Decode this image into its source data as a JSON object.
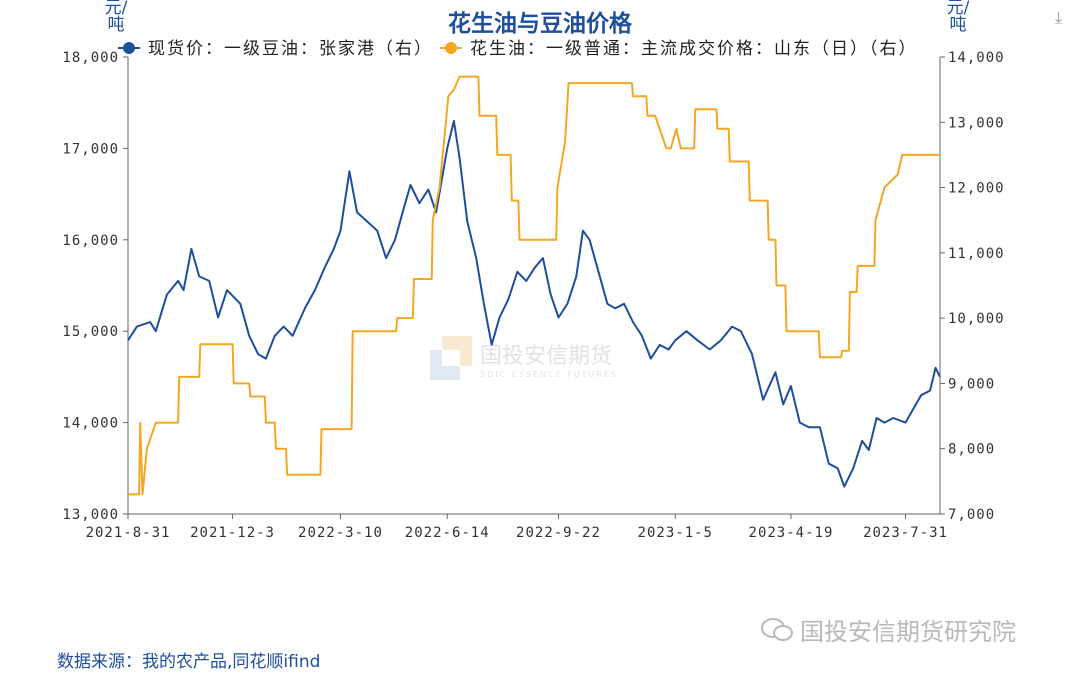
{
  "title": "花生油与豆油价格",
  "units": {
    "left": "元/吨",
    "right": "元/吨"
  },
  "source": "数据来源：我的农产品,同花顺ifind",
  "watermark": {
    "center_cn": "国投安信期货",
    "center_en": "SDIC ESSENCE FUTURES",
    "footer": "国投安信期货研究院"
  },
  "icons": {
    "download": "download-icon",
    "wechat": "wechat-icon",
    "logo": "sdic-logo-icon"
  },
  "chart_data": {
    "type": "line",
    "title": "花生油与豆油价格",
    "x_ticks": [
      "2021-8-31",
      "2021-12-3",
      "2022-3-10",
      "2022-6-14",
      "2022-9-22",
      "2023-1-5",
      "2023-4-19",
      "2023-7-31"
    ],
    "xlim": [
      "2021-8-31",
      "2023-8-31"
    ],
    "y_left": {
      "label": "元/吨",
      "ylim": [
        13000,
        18000
      ],
      "ticks": [
        13000,
        14000,
        15000,
        16000,
        17000,
        18000
      ]
    },
    "y_right": {
      "label": "元/吨",
      "ylim": [
        7000,
        14000
      ],
      "ticks": [
        7000,
        8000,
        9000,
        10000,
        11000,
        12000,
        13000,
        14000
      ]
    },
    "legend_position": "top",
    "grid": false,
    "series": [
      {
        "name": "现货价：一级豆油：张家港（右）",
        "axis": "left",
        "color": "#1f4e9c",
        "points": [
          [
            "2021-08-31",
            14900
          ],
          [
            "2021-09-08",
            15050
          ],
          [
            "2021-09-20",
            15100
          ],
          [
            "2021-09-25",
            15000
          ],
          [
            "2021-10-05",
            15400
          ],
          [
            "2021-10-15",
            15550
          ],
          [
            "2021-10-20",
            15450
          ],
          [
            "2021-10-27",
            15900
          ],
          [
            "2021-11-03",
            15600
          ],
          [
            "2021-11-12",
            15550
          ],
          [
            "2021-11-20",
            15150
          ],
          [
            "2021-11-28",
            15450
          ],
          [
            "2021-12-10",
            15300
          ],
          [
            "2021-12-18",
            14950
          ],
          [
            "2021-12-26",
            14750
          ],
          [
            "2022-01-02",
            14700
          ],
          [
            "2022-01-10",
            14950
          ],
          [
            "2022-01-18",
            15050
          ],
          [
            "2022-01-26",
            14950
          ],
          [
            "2022-02-06",
            15250
          ],
          [
            "2022-02-15",
            15450
          ],
          [
            "2022-02-24",
            15700
          ],
          [
            "2022-03-04",
            15900
          ],
          [
            "2022-03-10",
            16100
          ],
          [
            "2022-03-18",
            16750
          ],
          [
            "2022-03-25",
            16300
          ],
          [
            "2022-04-03",
            16200
          ],
          [
            "2022-04-12",
            16100
          ],
          [
            "2022-04-20",
            15800
          ],
          [
            "2022-04-28",
            16000
          ],
          [
            "2022-05-06",
            16350
          ],
          [
            "2022-05-12",
            16600
          ],
          [
            "2022-05-20",
            16400
          ],
          [
            "2022-05-28",
            16550
          ],
          [
            "2022-06-04",
            16300
          ],
          [
            "2022-06-14",
            17000
          ],
          [
            "2022-06-20",
            17300
          ],
          [
            "2022-06-25",
            16900
          ],
          [
            "2022-07-02",
            16200
          ],
          [
            "2022-07-10",
            15800
          ],
          [
            "2022-07-17",
            15300
          ],
          [
            "2022-07-24",
            14850
          ],
          [
            "2022-07-31",
            15150
          ],
          [
            "2022-08-08",
            15350
          ],
          [
            "2022-08-16",
            15650
          ],
          [
            "2022-08-24",
            15550
          ],
          [
            "2022-09-01",
            15700
          ],
          [
            "2022-09-08",
            15800
          ],
          [
            "2022-09-15",
            15400
          ],
          [
            "2022-09-22",
            15150
          ],
          [
            "2022-09-30",
            15300
          ],
          [
            "2022-10-08",
            15600
          ],
          [
            "2022-10-14",
            16100
          ],
          [
            "2022-10-20",
            16000
          ],
          [
            "2022-10-28",
            15650
          ],
          [
            "2022-11-05",
            15300
          ],
          [
            "2022-11-12",
            15250
          ],
          [
            "2022-11-20",
            15300
          ],
          [
            "2022-11-28",
            15100
          ],
          [
            "2022-12-06",
            14950
          ],
          [
            "2022-12-14",
            14700
          ],
          [
            "2022-12-22",
            14850
          ],
          [
            "2022-12-30",
            14800
          ],
          [
            "2023-01-05",
            14900
          ],
          [
            "2023-01-15",
            15000
          ],
          [
            "2023-01-25",
            14900
          ],
          [
            "2023-02-05",
            14800
          ],
          [
            "2023-02-15",
            14900
          ],
          [
            "2023-02-25",
            15050
          ],
          [
            "2023-03-05",
            15000
          ],
          [
            "2023-03-15",
            14750
          ],
          [
            "2023-03-25",
            14250
          ],
          [
            "2023-04-05",
            14550
          ],
          [
            "2023-04-12",
            14200
          ],
          [
            "2023-04-19",
            14400
          ],
          [
            "2023-04-27",
            14000
          ],
          [
            "2023-05-05",
            13950
          ],
          [
            "2023-05-15",
            13950
          ],
          [
            "2023-05-23",
            13550
          ],
          [
            "2023-05-31",
            13500
          ],
          [
            "2023-06-06",
            13300
          ],
          [
            "2023-06-14",
            13500
          ],
          [
            "2023-06-22",
            13800
          ],
          [
            "2023-06-28",
            13700
          ],
          [
            "2023-07-05",
            14050
          ],
          [
            "2023-07-12",
            14000
          ],
          [
            "2023-07-20",
            14050
          ],
          [
            "2023-07-31",
            14000
          ],
          [
            "2023-08-07",
            14150
          ],
          [
            "2023-08-14",
            14300
          ],
          [
            "2023-08-22",
            14350
          ],
          [
            "2023-08-27",
            14600
          ],
          [
            "2023-08-31",
            14500
          ]
        ]
      },
      {
        "name": "花生油：一级普通：主流成交价格：山东（日）（右）",
        "axis": "right",
        "color": "#f5a623",
        "points": [
          [
            "2021-08-31",
            7300
          ],
          [
            "2021-09-10",
            7300
          ],
          [
            "2021-09-11",
            8400
          ],
          [
            "2021-09-13",
            7300
          ],
          [
            "2021-09-17",
            8000
          ],
          [
            "2021-09-25",
            8400
          ],
          [
            "2021-10-05",
            8400
          ],
          [
            "2021-10-15",
            8400
          ],
          [
            "2021-10-16",
            9100
          ],
          [
            "2021-11-03",
            9100
          ],
          [
            "2021-11-04",
            9600
          ],
          [
            "2021-11-29",
            9600
          ],
          [
            "2021-11-30",
            9600
          ],
          [
            "2021-12-03",
            9600
          ],
          [
            "2021-12-04",
            9000
          ],
          [
            "2021-12-18",
            9000
          ],
          [
            "2021-12-19",
            8800
          ],
          [
            "2022-01-01",
            8800
          ],
          [
            "2022-01-02",
            8400
          ],
          [
            "2022-01-10",
            8400
          ],
          [
            "2022-01-11",
            8000
          ],
          [
            "2022-01-20",
            8000
          ],
          [
            "2022-01-21",
            7600
          ],
          [
            "2022-02-20",
            7600
          ],
          [
            "2022-02-21",
            8300
          ],
          [
            "2022-03-20",
            8300
          ],
          [
            "2022-03-21",
            9800
          ],
          [
            "2022-04-29",
            9800
          ],
          [
            "2022-04-30",
            10000
          ],
          [
            "2022-05-14",
            10000
          ],
          [
            "2022-05-15",
            10600
          ],
          [
            "2022-05-31",
            10600
          ],
          [
            "2022-06-01",
            11500
          ],
          [
            "2022-06-07",
            12000
          ],
          [
            "2022-06-15",
            13400
          ],
          [
            "2022-06-20",
            13500
          ],
          [
            "2022-06-25",
            13700
          ],
          [
            "2022-07-12",
            13700
          ],
          [
            "2022-07-13",
            13100
          ],
          [
            "2022-07-28",
            13100
          ],
          [
            "2022-07-29",
            12500
          ],
          [
            "2022-08-10",
            12500
          ],
          [
            "2022-08-11",
            11800
          ],
          [
            "2022-08-17",
            11800
          ],
          [
            "2022-08-18",
            11200
          ],
          [
            "2022-09-20",
            11200
          ],
          [
            "2022-09-21",
            12000
          ],
          [
            "2022-09-28",
            12700
          ],
          [
            "2022-10-01",
            13600
          ],
          [
            "2022-11-27",
            13600
          ],
          [
            "2022-11-28",
            13400
          ],
          [
            "2022-12-10",
            13400
          ],
          [
            "2022-12-11",
            13100
          ],
          [
            "2022-12-18",
            13100
          ],
          [
            "2022-12-28",
            12600
          ],
          [
            "2023-01-01",
            12600
          ],
          [
            "2023-01-06",
            12900
          ],
          [
            "2023-01-10",
            12600
          ],
          [
            "2023-01-22",
            12600
          ],
          [
            "2023-01-23",
            13200
          ],
          [
            "2023-02-11",
            13200
          ],
          [
            "2023-02-12",
            12900
          ],
          [
            "2023-02-22",
            12900
          ],
          [
            "2023-02-23",
            12400
          ],
          [
            "2023-03-12",
            12400
          ],
          [
            "2023-03-13",
            11800
          ],
          [
            "2023-03-29",
            11800
          ],
          [
            "2023-03-30",
            11200
          ],
          [
            "2023-04-05",
            11200
          ],
          [
            "2023-04-06",
            10500
          ],
          [
            "2023-04-14",
            10500
          ],
          [
            "2023-04-15",
            9800
          ],
          [
            "2023-05-14",
            9800
          ],
          [
            "2023-05-15",
            9400
          ],
          [
            "2023-06-03",
            9400
          ],
          [
            "2023-06-04",
            9500
          ],
          [
            "2023-06-10",
            9500
          ],
          [
            "2023-06-11",
            10400
          ],
          [
            "2023-06-17",
            10400
          ],
          [
            "2023-06-18",
            10800
          ],
          [
            "2023-07-03",
            10800
          ],
          [
            "2023-07-04",
            11500
          ],
          [
            "2023-07-12",
            12000
          ],
          [
            "2023-07-24",
            12200
          ],
          [
            "2023-07-28",
            12500
          ],
          [
            "2023-08-31",
            12500
          ]
        ]
      }
    ]
  }
}
